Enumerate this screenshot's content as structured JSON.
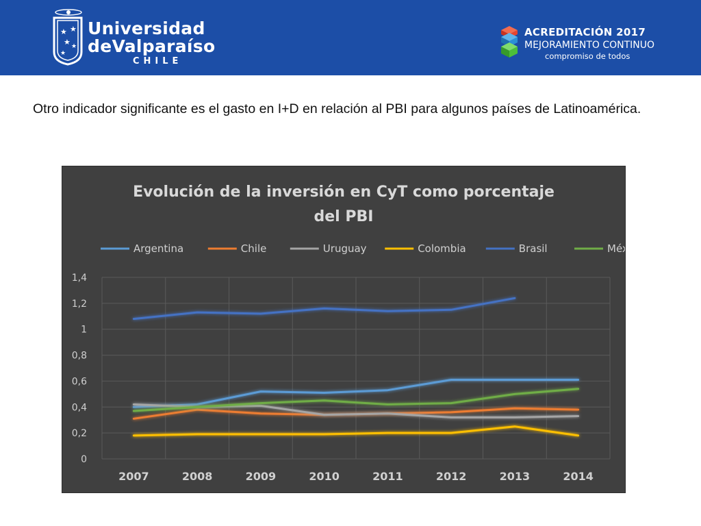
{
  "header": {
    "university_line1": "Universidad",
    "university_line2": "deValparaíso",
    "university_line3": "CHILE",
    "accreditation_title": "ACREDITACIÓN 2017",
    "accreditation_sub1": "MEJORAMIENTO CONTINUO",
    "accreditation_sub2": "compromiso de todos",
    "colors": {
      "header_bg": "#1c4ea7",
      "cube_top": "#e8442e",
      "cube_mid": "#2b8fd6",
      "cube_bot": "#4cbf3a"
    }
  },
  "intro_text": "Otro indicador significante es el gasto en I+D en relación al PBI para algunos países de Latinoamérica.",
  "chart_data": {
    "type": "line",
    "title": "Evolución de la inversión en CyT como porcentaje del PBI",
    "title_lines": [
      "Evolución de la inversión en CyT como porcentaje",
      "del PBI"
    ],
    "xlabel": "",
    "ylabel": "",
    "categories": [
      "2007",
      "2008",
      "2009",
      "2010",
      "2011",
      "2012",
      "2013",
      "2014"
    ],
    "y_ticks": [
      "0",
      "0,2",
      "0,4",
      "0,6",
      "0,8",
      "1",
      "1,2",
      "1,4"
    ],
    "ylim": [
      0,
      1.4
    ],
    "grid": true,
    "legend_position": "top",
    "background": "#404040",
    "series": [
      {
        "name": "Argentina",
        "color": "#5b9bd5",
        "values": [
          0.4,
          0.42,
          0.52,
          0.51,
          0.53,
          0.61,
          0.61,
          0.61
        ]
      },
      {
        "name": "Chile",
        "color": "#ed7d31",
        "values": [
          0.31,
          0.38,
          0.35,
          0.34,
          0.35,
          0.36,
          0.39,
          0.38
        ]
      },
      {
        "name": "Uruguay",
        "color": "#a5a5a5",
        "values": [
          0.42,
          0.4,
          0.41,
          0.34,
          0.35,
          0.32,
          0.32,
          0.33
        ]
      },
      {
        "name": "Colombia",
        "color": "#ffc000",
        "values": [
          0.18,
          0.19,
          0.19,
          0.19,
          0.2,
          0.2,
          0.25,
          0.18
        ]
      },
      {
        "name": "Brasil",
        "color": "#4472c4",
        "values": [
          1.08,
          1.13,
          1.12,
          1.16,
          1.14,
          1.15,
          1.24,
          null
        ]
      },
      {
        "name": "México",
        "color": "#70ad47",
        "values": [
          0.37,
          0.4,
          0.43,
          0.45,
          0.42,
          0.43,
          0.5,
          0.54
        ]
      }
    ]
  }
}
